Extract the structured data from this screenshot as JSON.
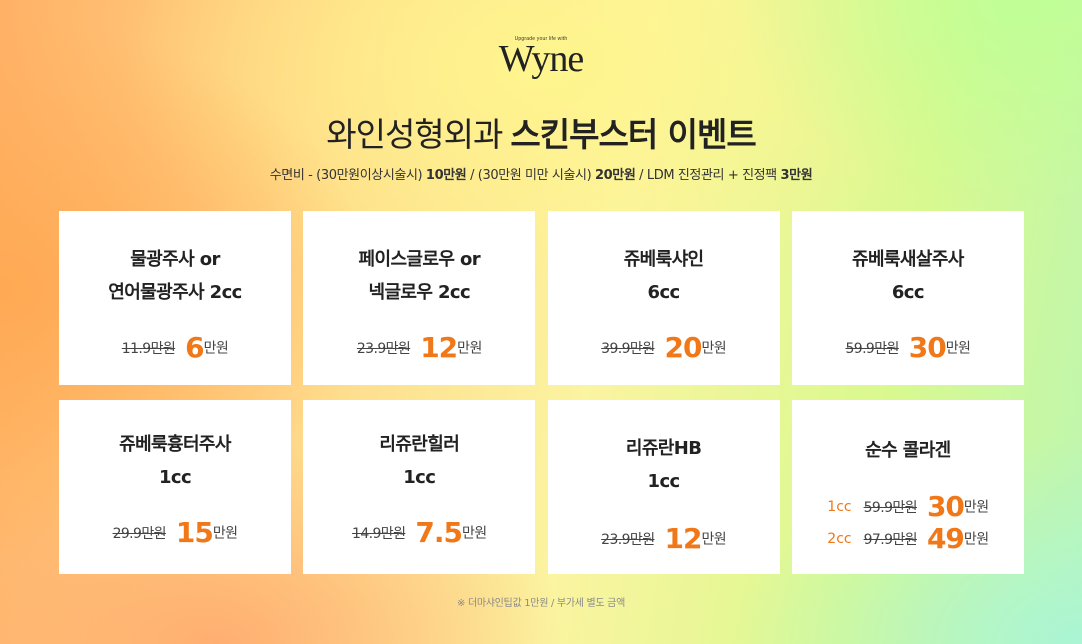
{
  "logo": {
    "tagline": "Upgrade your life with",
    "wordmark": "Wyne"
  },
  "title": {
    "light": "와인성형외과",
    "bold": "스킨부스터 이벤트"
  },
  "subtitle": {
    "prefix": "수면비 - (30만원이상시술시) ",
    "price1": "10만원",
    "middle": " / (30만원 미만 시술시) ",
    "price2": "20만원",
    "suffix": " / LDM 진정관리 + 진정팩 ",
    "price3": "3만원"
  },
  "cards": [
    {
      "line1": "물광주사 or",
      "line2": "연어물광주사 2cc",
      "original": "11.9만원",
      "sale": "6",
      "unit": "만원"
    },
    {
      "line1": "페이스글로우 or",
      "line2": "넥글로우 2cc",
      "original": "23.9만원",
      "sale": "12",
      "unit": "만원"
    },
    {
      "line1": "쥬베룩샤인",
      "line2": "6cc",
      "original": "39.9만원",
      "sale": "20",
      "unit": "만원"
    },
    {
      "line1": "쥬베룩새살주사",
      "line2": "6cc",
      "original": "59.9만원",
      "sale": "30",
      "unit": "만원"
    },
    {
      "line1": "쥬베룩흉터주사",
      "line2": "1cc",
      "original": "29.9만원",
      "sale": "15",
      "unit": "만원"
    },
    {
      "line1": "리쥬란힐러",
      "line2": "1cc",
      "original": "14.9만원",
      "sale": "7.5",
      "unit": "만원"
    },
    {
      "line1": "리쥬란HB",
      "line2": "1cc",
      "original": "23.9만원",
      "sale": "12",
      "unit": "만원"
    },
    {
      "line1": "순수 콜라겐",
      "options": [
        {
          "cc": "1cc",
          "original": "59.9만원",
          "sale": "30",
          "unit": "만원"
        },
        {
          "cc": "2cc",
          "original": "97.9만원",
          "sale": "49",
          "unit": "만원"
        }
      ]
    }
  ],
  "footnote": "※ 더마샤인팁값 1만원 / 부가세 별도 금액",
  "colors": {
    "accent": "#f07818",
    "card_bg": "#ffffff",
    "text": "#222222"
  }
}
